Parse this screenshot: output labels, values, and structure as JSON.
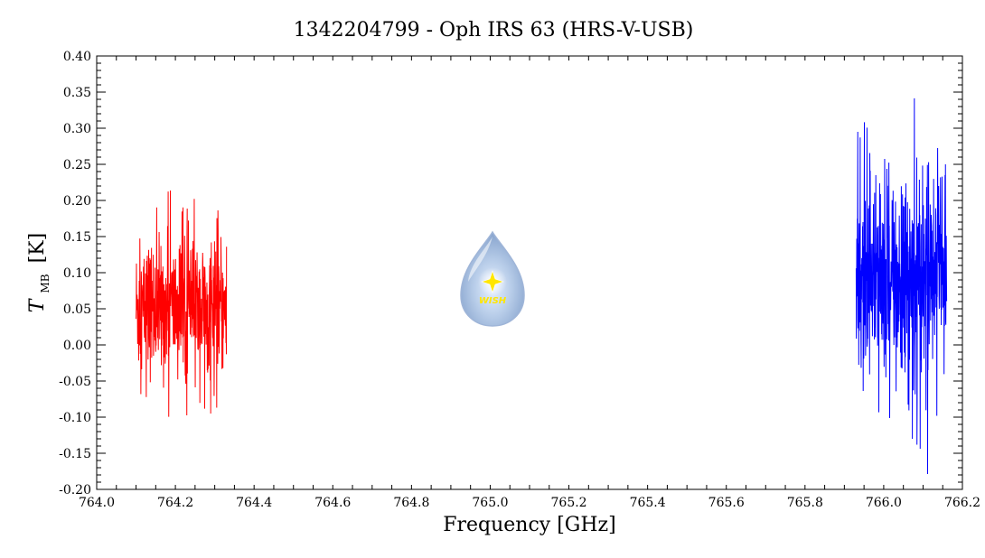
{
  "chart_data": {
    "type": "line",
    "title": "1342204799 - Oph IRS 63 (HRS-V-USB)",
    "xlabel": "Frequency [GHz]",
    "ylabel_main": "T",
    "ylabel_sub": "MB",
    "ylabel_unit": "[K]",
    "xlim": [
      764.0,
      766.2
    ],
    "ylim": [
      -0.2,
      0.4
    ],
    "x_ticks": [
      764.0,
      764.2,
      764.4,
      764.6,
      764.8,
      765.0,
      765.2,
      765.4,
      765.6,
      765.8,
      766.0,
      766.2
    ],
    "x_tick_labels": [
      "764.0",
      "764.2",
      "764.4",
      "764.6",
      "764.8",
      "765.0",
      "765.2",
      "765.4",
      "765.6",
      "765.8",
      "766.0",
      "766.2"
    ],
    "y_ticks": [
      -0.2,
      -0.15,
      -0.1,
      -0.05,
      0.0,
      0.05,
      0.1,
      0.15,
      0.2,
      0.25,
      0.3,
      0.35,
      0.4
    ],
    "y_tick_labels": [
      "-0.20",
      "-0.15",
      "-0.10",
      "-0.05",
      "0.00",
      "0.05",
      "0.10",
      "0.15",
      "0.20",
      "0.25",
      "0.30",
      "0.35",
      "0.40"
    ],
    "grid": false,
    "series": [
      {
        "color": "#ff0000",
        "x_range": [
          764.1,
          764.33
        ],
        "envelope_min": [
          -0.12,
          -0.08,
          -0.1,
          -0.09,
          -0.1,
          -0.08,
          -0.09,
          -0.1,
          -0.12,
          -0.09,
          -0.1,
          -0.09,
          -0.1
        ],
        "envelope_max": [
          0.15,
          0.23,
          0.21,
          0.23,
          0.22,
          0.23,
          0.2,
          0.19,
          0.22,
          0.19,
          0.2,
          0.19,
          0.18
        ],
        "baseline": 0.05,
        "noise_sigma": 0.045
      },
      {
        "color": "#0000ff",
        "x_range": [
          765.93,
          766.16
        ],
        "envelope_min": [
          -0.04,
          -0.1,
          -0.09,
          -0.11,
          -0.12,
          -0.13,
          -0.12,
          -0.1,
          -0.14,
          -0.15,
          -0.18,
          -0.1,
          -0.06
        ],
        "envelope_max": [
          0.3,
          0.31,
          0.29,
          0.33,
          0.27,
          0.32,
          0.28,
          0.29,
          0.35,
          0.33,
          0.35,
          0.28,
          0.25
        ],
        "baseline": 0.095,
        "noise_sigma": 0.065
      }
    ]
  },
  "watermark": {
    "text": "WISH",
    "fill": "#a8c4e6",
    "star_color": "#ffe600",
    "text_color": "#ffe600"
  }
}
